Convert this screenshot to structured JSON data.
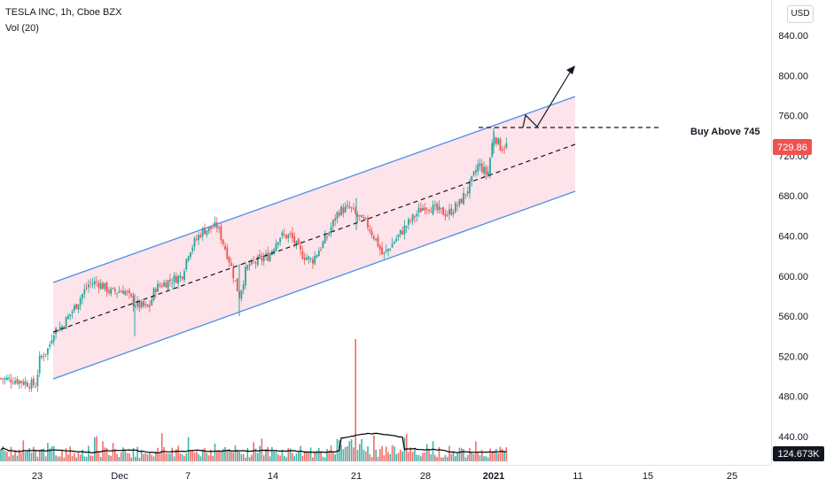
{
  "header": {
    "symbol_line": "TESLA INC, 1h, Cboe BZX",
    "indicator_line": "Vol (20)",
    "currency_button": "USD"
  },
  "annotations": {
    "buy_text": "Buy Above 745"
  },
  "chart_data": {
    "type": "candlestick",
    "title": "TESLA INC, 1h, Cboe BZX",
    "price_axis": {
      "ticks": [
        "840.00",
        "800.00",
        "760.00",
        "720.00",
        "680.00",
        "640.00",
        "600.00",
        "560.00",
        "520.00",
        "480.00",
        "440.00"
      ],
      "range": [
        425,
        870
      ],
      "last_price_label": "729.86",
      "last_price": 729.86
    },
    "volume": {
      "label": "124.673K",
      "spike_session": "Dec 21"
    },
    "time_axis": {
      "ticks": [
        "23",
        "Dec",
        "7",
        "14",
        "21",
        "28",
        "2021",
        "11",
        "15",
        "25"
      ]
    },
    "channel": {
      "upper_line": [
        [
          "Nov 24",
          593
        ],
        [
          "Jan 08",
          780
        ]
      ],
      "lower_line": [
        [
          "Nov 24",
          497
        ],
        [
          "Jan 08",
          683
        ]
      ],
      "mid_line_dashed": [
        [
          "Nov 24",
          545
        ],
        [
          "Jan 08",
          731
        ]
      ],
      "fill_color": "#fde3ea",
      "line_color": "#4a90e2"
    },
    "resistance_level": 745,
    "projection": [
      [
        745,
        754
      ],
      [
        762,
        748
      ],
      [
        808,
        "arrow up"
      ]
    ],
    "colors": {
      "up": "#26a69a",
      "down": "#ef5350",
      "last_price_badge": "#ef5350",
      "volume_badge": "#131722",
      "volume_ma": "#000000"
    }
  }
}
